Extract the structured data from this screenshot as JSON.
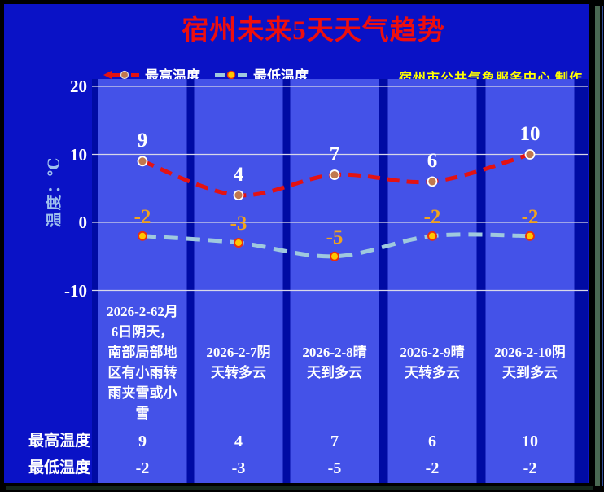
{
  "title": "宿州未来5天天气趋势",
  "credit": "宿州市公共气象服务中心 制作",
  "y_axis": {
    "label": "温度：℃"
  },
  "chart_data": {
    "type": "line",
    "title": "宿州未来5天天气趋势",
    "categories": [
      "2026-2-6",
      "2026-2-7",
      "2026-2-8",
      "2026-2-9",
      "2026-2-10"
    ],
    "series": [
      {
        "name": "最高温度",
        "values": [
          9,
          4,
          7,
          6,
          10
        ],
        "color": "#e41212",
        "marker_fill": "#c0784f",
        "marker_stroke": "#ffffff",
        "label_color": "#ffffff"
      },
      {
        "name": "最低温度",
        "values": [
          -2,
          -3,
          -5,
          -2,
          -2
        ],
        "color": "#9fc9de",
        "marker_fill": "#ffc800",
        "marker_stroke": "#e83010",
        "label_color": "#f2a41c"
      }
    ],
    "ylabel": "温度：℃",
    "yticks": [
      20,
      10,
      0,
      -10
    ],
    "ylim": [
      -16,
      21
    ],
    "grid": true,
    "legend_position": "top-left"
  },
  "columns": [
    {
      "date_lines": "2026-2-62月\n6日阴天，\n南部局部地\n区有小雨转\n雨夹雪或小\n雪",
      "max": "9",
      "min": "-2"
    },
    {
      "date_lines": "2026-2-7阴\n天转多云",
      "max": "4",
      "min": "-3"
    },
    {
      "date_lines": "2026-2-8晴\n天到多云",
      "max": "7",
      "min": "-5"
    },
    {
      "date_lines": "2026-2-9晴\n天转多云",
      "max": "6",
      "min": "-2"
    },
    {
      "date_lines": "2026-2-10阴\n天到多云",
      "max": "10",
      "min": "-2"
    }
  ],
  "table": {
    "max_row_label": "最高温度",
    "min_row_label": "最低温度"
  },
  "icons": {
    "legend_max": "red-dashed-line-with-round-marker",
    "legend_min": "lightblue-dashed-line-with-round-marker"
  },
  "colors": {
    "frame": "#000000",
    "page_bg": "#0a12c6",
    "plot_bg": "#000ba4",
    "band": "#4452e8",
    "gridline": "#d8d8e8",
    "title": "#ee0e0e",
    "credit": "#ffff00",
    "tick_text": "#ffffff",
    "y_label_text": "#9fc0ee",
    "date_text": "#ffffff"
  }
}
